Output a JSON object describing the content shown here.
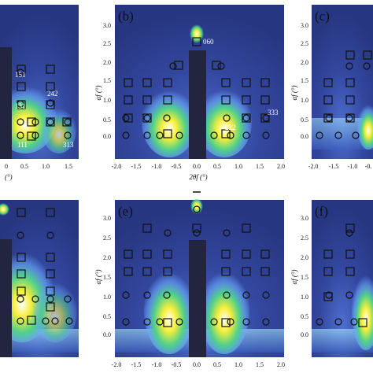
{
  "panels": [
    {
      "label": "",
      "annotations": [
        "151",
        "242",
        "131",
        "111",
        "313"
      ]
    },
    {
      "label": "(b)",
      "annotations": [
        "060",
        "333",
        "222"
      ]
    },
    {
      "label": "(c)",
      "annotations": []
    },
    {
      "label": "",
      "annotations": []
    },
    {
      "label": "(e)",
      "annotations": []
    },
    {
      "label": "(f)",
      "annotations": []
    }
  ],
  "axes": {
    "x_label": "2θf (°)",
    "y_label": "αf (°)",
    "x_ticks": [
      "-2.0",
      "-1.5",
      "-1.0",
      "-0.5",
      "0.0",
      "0.5",
      "1.0",
      "1.5",
      "2.0"
    ],
    "y_ticks": [
      "0.0",
      "0.5",
      "1.0",
      "1.5",
      "2.0",
      "2.5",
      "3.0"
    ],
    "partial_x_ticks_left": [
      "0",
      "0.5",
      "1.0",
      "1.5"
    ],
    "partial_x_label_left": "(°)",
    "partial_x_ticks_right": [
      "-2.0",
      "-1.5",
      "-1.0",
      "-0."
    ]
  },
  "colors": {
    "background": "#2c3d9c",
    "bright": "#9fe8ff",
    "hot": "#f7ef3a",
    "beamstop": "#232440"
  }
}
